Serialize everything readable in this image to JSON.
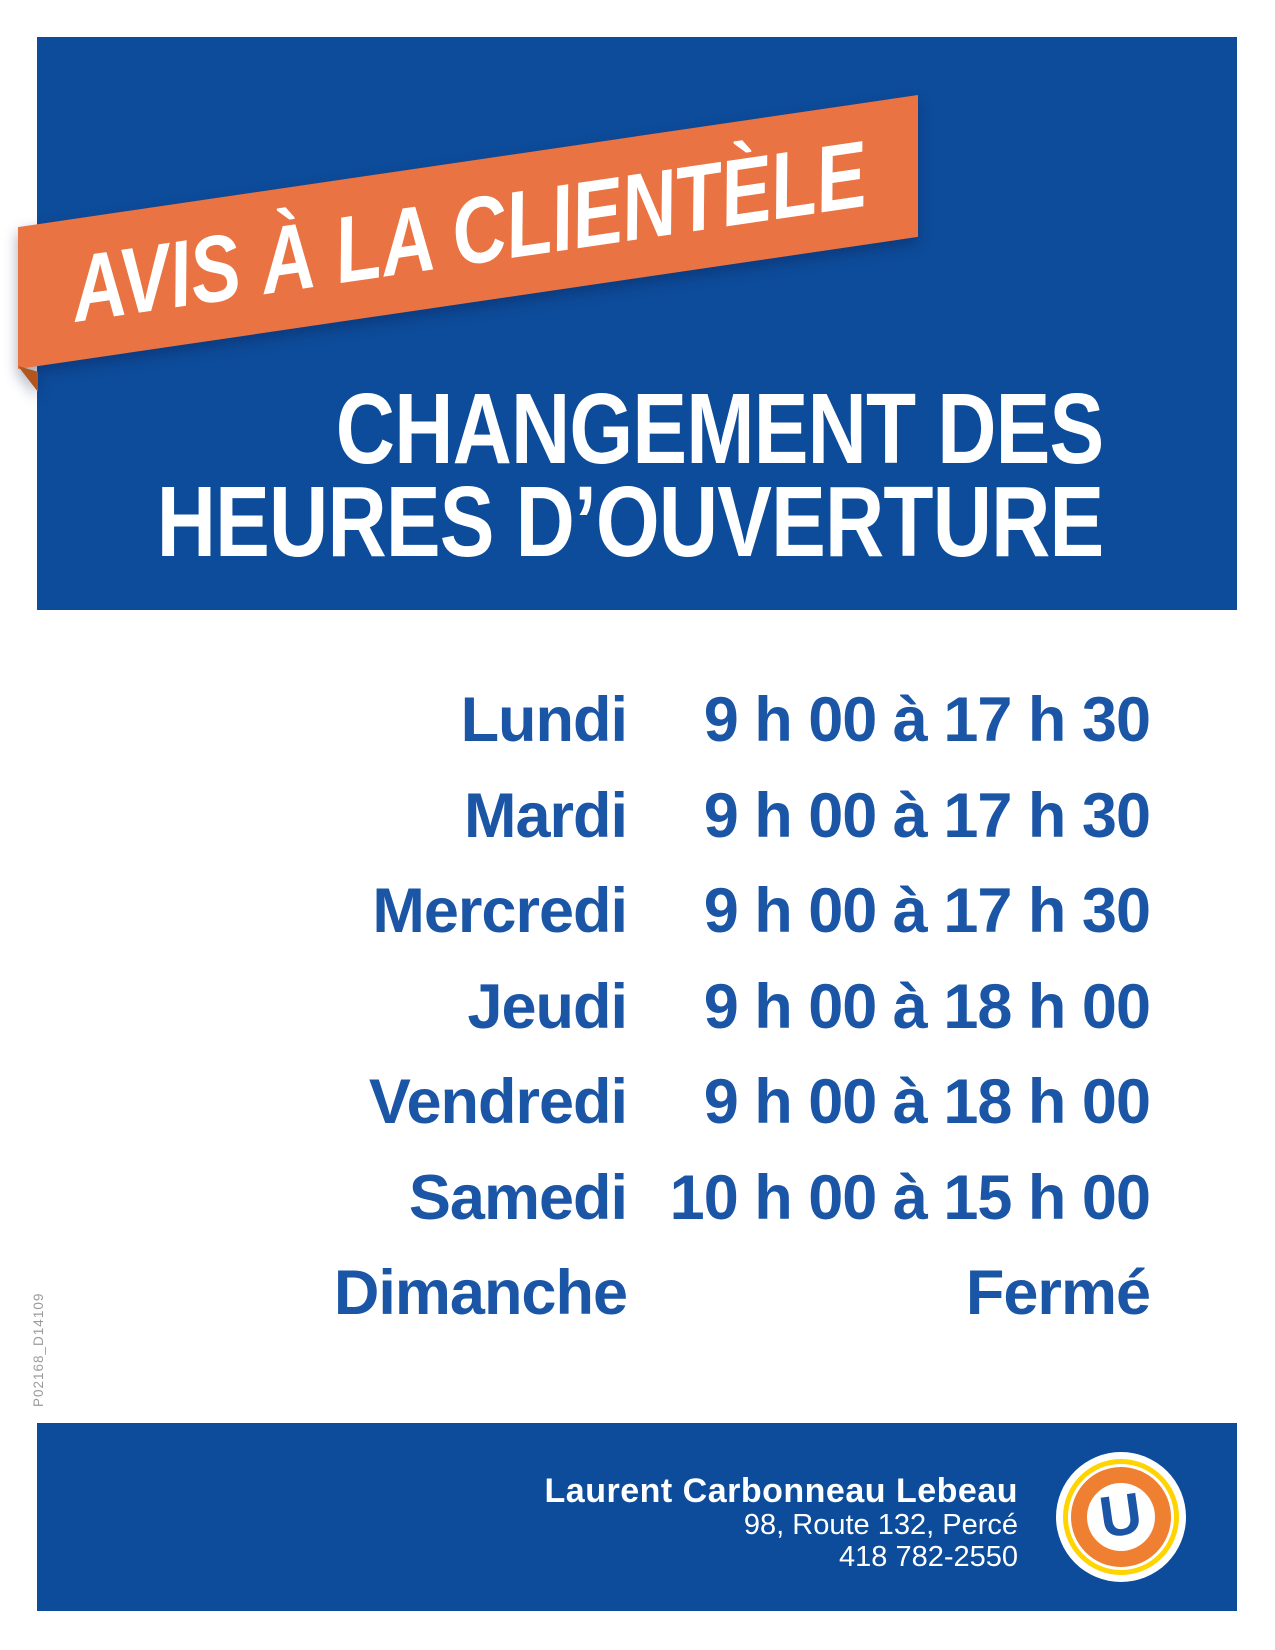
{
  "page": {
    "production_code": "P02168_D14109"
  },
  "banner": {
    "label": "AVIS À LA CLIENTÈLE"
  },
  "title": {
    "line1": "CHANGEMENT DES",
    "line2": "HEURES D’OUVERTURE"
  },
  "schedule": {
    "rows": [
      {
        "day": "Lundi",
        "hours": "9 h 00 à 17 h 30"
      },
      {
        "day": "Mardi",
        "hours": "9 h 00 à 17 h 30"
      },
      {
        "day": "Mercredi",
        "hours": "9 h 00 à 17 h 30"
      },
      {
        "day": "Jeudi",
        "hours": "9 h 00 à 18 h 00"
      },
      {
        "day": "Vendredi",
        "hours": "9 h 00 à 18 h 00"
      },
      {
        "day": "Samedi",
        "hours": "10 h 00 à 15 h 00"
      },
      {
        "day": "Dimanche",
        "hours": "Fermé"
      }
    ]
  },
  "footer": {
    "store_name": "Laurent Carbonneau Lebeau",
    "address": "98, Route 132, Percé",
    "phone": "418 782-2550",
    "logo_letter": "U"
  },
  "colors": {
    "blue_background": "#0d4c9b",
    "blue_text": "#1b55a6",
    "ribbon_orange": "#e97342",
    "ribbon_fold_orange": "#b3561d",
    "logo_orange": "#ef8032",
    "logo_yellow": "#ffd400",
    "code_gray": "#9b9b9b"
  }
}
